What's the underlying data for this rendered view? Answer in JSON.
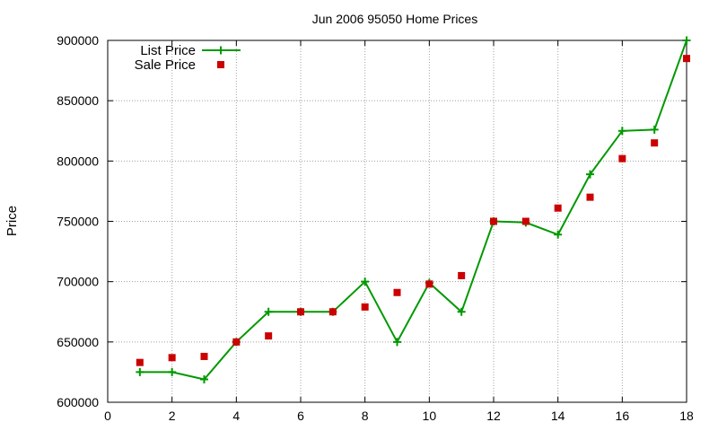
{
  "chart_data": {
    "type": "line",
    "title": "Jun 2006 95050 Home Prices",
    "xlabel": "",
    "ylabel": "Price",
    "xlim": [
      0,
      18
    ],
    "ylim": [
      600000,
      900000
    ],
    "xticks": [
      0,
      2,
      4,
      6,
      8,
      10,
      12,
      14,
      16,
      18
    ],
    "yticks": [
      600000,
      650000,
      700000,
      750000,
      800000,
      850000,
      900000
    ],
    "grid": true,
    "legend_position": "top-left",
    "series": [
      {
        "name": "List Price",
        "style": "line-with-plus-markers",
        "color": "#009900",
        "x": [
          1,
          2,
          3,
          4,
          5,
          6,
          7,
          8,
          9,
          10,
          11,
          12,
          13,
          14,
          15,
          16,
          17,
          18
        ],
        "y": [
          625000,
          625000,
          619000,
          650000,
          675000,
          675000,
          675000,
          700000,
          650000,
          699000,
          675000,
          750000,
          749000,
          739000,
          789000,
          825000,
          826000,
          900000
        ]
      },
      {
        "name": "Sale Price",
        "style": "square-markers",
        "color": "#cc0000",
        "x": [
          1,
          2,
          3,
          4,
          5,
          6,
          7,
          8,
          9,
          10,
          11,
          12,
          13,
          14,
          15,
          16,
          17,
          18
        ],
        "y": [
          633000,
          637000,
          638000,
          650000,
          655000,
          675000,
          675000,
          679000,
          691000,
          698000,
          705000,
          750000,
          750000,
          761000,
          770000,
          802000,
          815000,
          885000
        ]
      }
    ]
  }
}
